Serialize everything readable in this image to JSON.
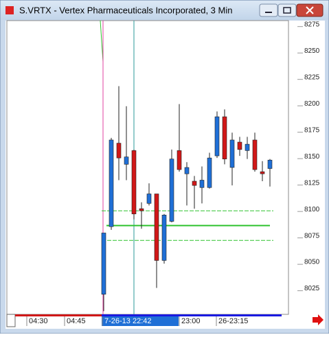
{
  "chart_data": {
    "type": "candlestick",
    "title": "S.VRTX - Vertex Pharmaceuticals Incorporated, 3 Min",
    "open": [
      8021,
      8085,
      8164,
      8144,
      8157,
      8102,
      8107,
      8116,
      8053,
      8090,
      8157,
      8135,
      8128,
      8122,
      8122,
      8152,
      8189,
      8141,
      8165,
      8157,
      8167,
      8137,
      8140
    ],
    "high": [
      8079,
      8169,
      8218,
      8199,
      8158,
      8108,
      8126,
      8116,
      8097,
      8158,
      8201,
      8146,
      8133,
      8142,
      8155,
      8194,
      8196,
      8174,
      8170,
      8170,
      8174,
      8147,
      8149
    ],
    "low": [
      8005,
      8082,
      8129,
      8129,
      8092,
      8083,
      8105,
      8027,
      8050,
      8089,
      8137,
      8105,
      8102,
      8107,
      8121,
      8150,
      8144,
      8124,
      8152,
      8149,
      8137,
      8128,
      8123
    ],
    "close": [
      8079,
      8167,
      8150,
      8151,
      8097,
      8100,
      8116,
      8053,
      8096,
      8149,
      8139,
      8141,
      8124,
      8129,
      8150,
      8189,
      8149,
      8167,
      8158,
      8163,
      8139,
      8135,
      8148
    ],
    "up_color": "#1f6fd6",
    "down_color": "#d01818",
    "levels": [
      {
        "value": 8100,
        "color": "#2ec22e",
        "style": "dashed"
      },
      {
        "value": 8086,
        "color": "#2ec22e",
        "style": "solid"
      },
      {
        "value": 8072,
        "color": "#2ec22e",
        "style": "dashed"
      }
    ],
    "x_labels": [
      "04:30",
      "04:45",
      "7-26-13 22:42",
      "23:00",
      "26-23:15"
    ],
    "ylim": [
      8002,
      8280
    ],
    "yticks": [
      8025,
      8050,
      8075,
      8100,
      8125,
      8150,
      8175,
      8200,
      8225,
      8250,
      8275
    ],
    "grid": false
  }
}
